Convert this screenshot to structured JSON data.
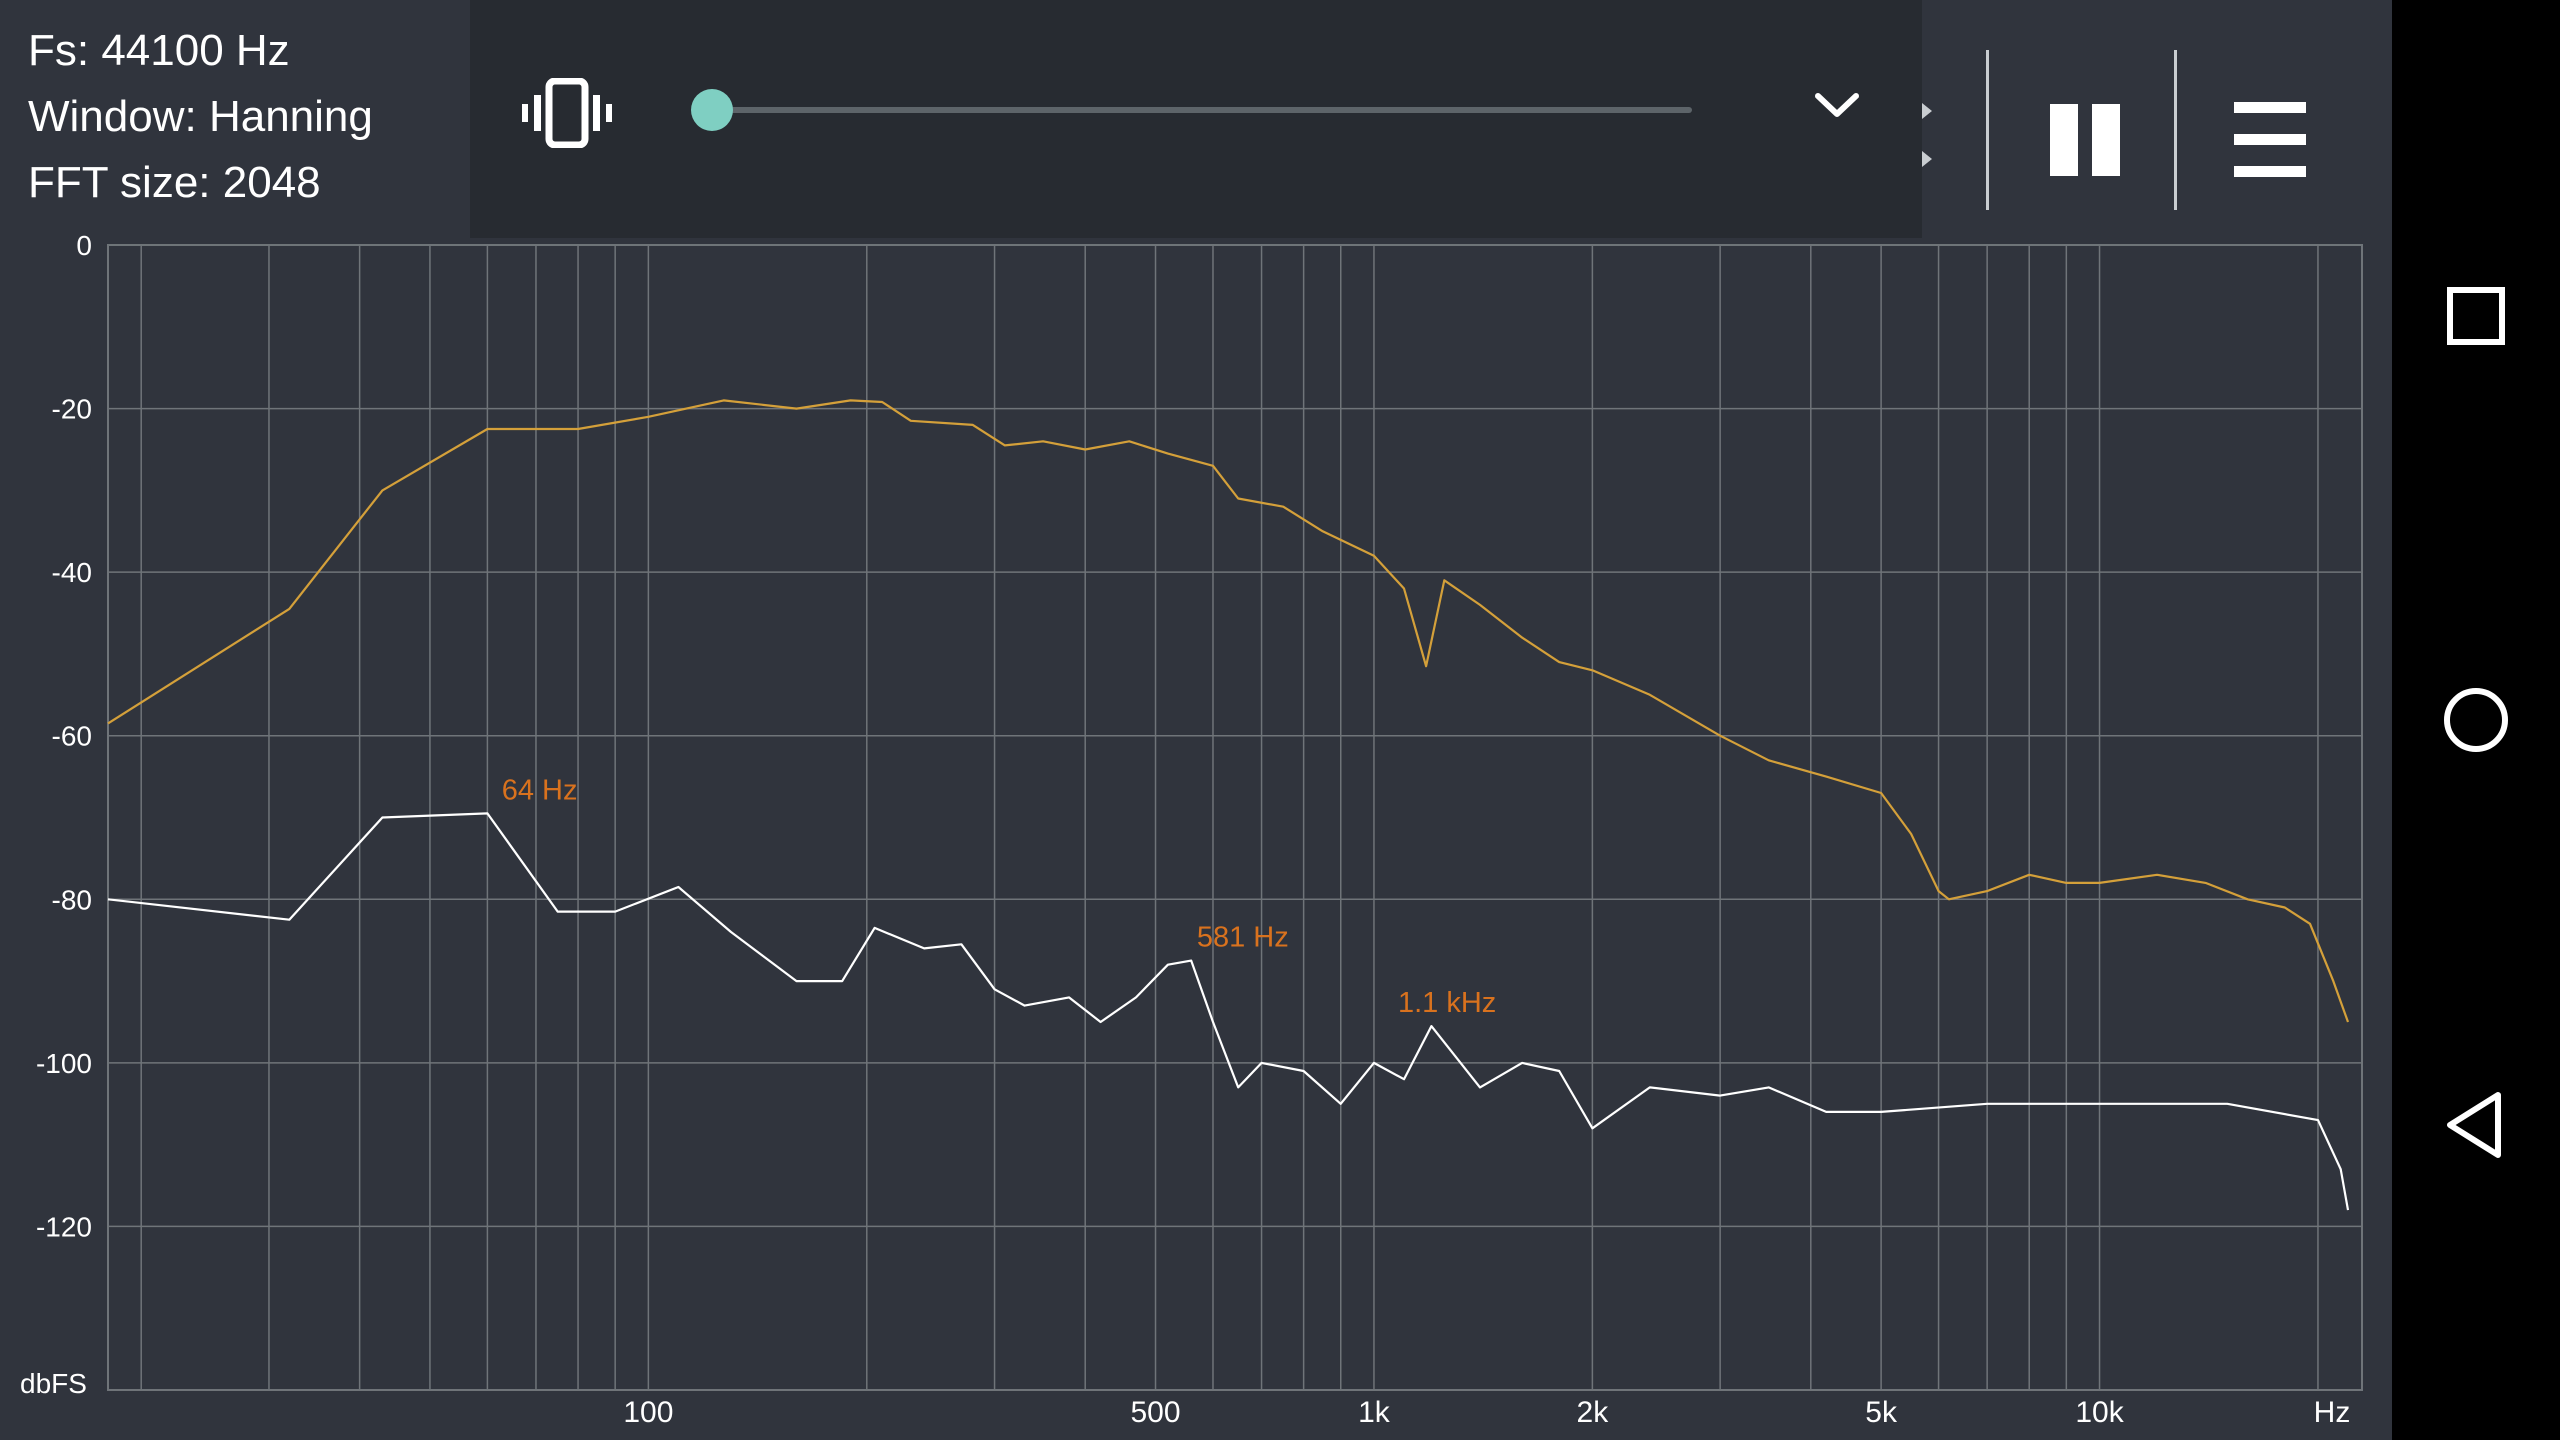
{
  "info": {
    "fs": "Fs: 44100 Hz",
    "window": "Window: Hanning",
    "fft": "FFT size: 2048"
  },
  "volume": {
    "level": 0.02
  },
  "icons": {
    "vibrate": "vibrate-icon",
    "expand": "chevron-down-icon",
    "pause": "pause-icon",
    "menu": "menu-icon",
    "recents": "square-icon",
    "home": "circle-icon",
    "back": "triangle-back-icon"
  },
  "colors": {
    "background": "#30343d",
    "grid": "#6f7479",
    "spectrum_peak": "#d4a03a",
    "spectrum_live": "#ffffff",
    "peak_label": "#d9721e",
    "slider": "#7fcfc2"
  },
  "chart_data": {
    "type": "line",
    "x_scale": "log",
    "xlim": [
      18,
      23000
    ],
    "ylim": [
      -140,
      0
    ],
    "y_unit_label": "dbFS",
    "x_unit_label": "Hz",
    "y_ticks": [
      0,
      -20,
      -40,
      -60,
      -80,
      -100,
      -120
    ],
    "y_tick_labels": [
      "0",
      "-20",
      "-40",
      "-60",
      "-80",
      "-100",
      "-120"
    ],
    "x_ticks": [
      100,
      500,
      1000,
      2000,
      5000,
      10000
    ],
    "x_tick_labels": [
      "100",
      "500",
      "1k",
      "2k",
      "5k",
      "10k"
    ],
    "x_grid": [
      20,
      30,
      40,
      50,
      60,
      70,
      80,
      90,
      100,
      200,
      300,
      400,
      500,
      600,
      700,
      800,
      900,
      1000,
      2000,
      3000,
      4000,
      5000,
      6000,
      7000,
      8000,
      9000,
      10000,
      20000
    ],
    "grid": true,
    "series": [
      {
        "role": "peak-hold",
        "color": "#d4a03a",
        "points": [
          [
            18,
            -58.5
          ],
          [
            32,
            -44.5
          ],
          [
            43,
            -30
          ],
          [
            60,
            -22.5
          ],
          [
            80,
            -22.5
          ],
          [
            100,
            -21
          ],
          [
            127,
            -19
          ],
          [
            160,
            -20
          ],
          [
            190,
            -19
          ],
          [
            210,
            -19.2
          ],
          [
            230,
            -21.5
          ],
          [
            280,
            -22
          ],
          [
            310,
            -24.5
          ],
          [
            350,
            -24
          ],
          [
            400,
            -25
          ],
          [
            460,
            -24
          ],
          [
            520,
            -25.5
          ],
          [
            600,
            -27
          ],
          [
            650,
            -31
          ],
          [
            750,
            -32
          ],
          [
            850,
            -35
          ],
          [
            1000,
            -38
          ],
          [
            1100,
            -42
          ],
          [
            1180,
            -51.5
          ],
          [
            1250,
            -41
          ],
          [
            1400,
            -44
          ],
          [
            1600,
            -48
          ],
          [
            1800,
            -51
          ],
          [
            2000,
            -52
          ],
          [
            2400,
            -55
          ],
          [
            3000,
            -60
          ],
          [
            3500,
            -63
          ],
          [
            4200,
            -65
          ],
          [
            5000,
            -67
          ],
          [
            5500,
            -72
          ],
          [
            6000,
            -79
          ],
          [
            6200,
            -80
          ],
          [
            7000,
            -79
          ],
          [
            8000,
            -77
          ],
          [
            9000,
            -78
          ],
          [
            10000,
            -78
          ],
          [
            12000,
            -77
          ],
          [
            14000,
            -78
          ],
          [
            16000,
            -80
          ],
          [
            18000,
            -81
          ],
          [
            19500,
            -83
          ],
          [
            21000,
            -90
          ],
          [
            22000,
            -95
          ]
        ]
      },
      {
        "role": "live",
        "color": "#ffffff",
        "points": [
          [
            18,
            -80
          ],
          [
            32,
            -82.5
          ],
          [
            43,
            -70
          ],
          [
            60,
            -69.5
          ],
          [
            75,
            -81.5
          ],
          [
            90,
            -81.5
          ],
          [
            110,
            -78.5
          ],
          [
            130,
            -84
          ],
          [
            160,
            -90
          ],
          [
            185,
            -90
          ],
          [
            205,
            -83.5
          ],
          [
            240,
            -86
          ],
          [
            270,
            -85.5
          ],
          [
            300,
            -91
          ],
          [
            330,
            -93
          ],
          [
            380,
            -92
          ],
          [
            420,
            -95
          ],
          [
            470,
            -92
          ],
          [
            520,
            -88
          ],
          [
            560,
            -87.5
          ],
          [
            600,
            -95
          ],
          [
            650,
            -103
          ],
          [
            700,
            -100
          ],
          [
            800,
            -101
          ],
          [
            900,
            -105
          ],
          [
            1000,
            -100
          ],
          [
            1100,
            -102
          ],
          [
            1200,
            -95.5
          ],
          [
            1400,
            -103
          ],
          [
            1600,
            -100
          ],
          [
            1800,
            -101
          ],
          [
            2000,
            -108
          ],
          [
            2400,
            -103
          ],
          [
            3000,
            -104
          ],
          [
            3500,
            -103
          ],
          [
            4200,
            -106
          ],
          [
            5000,
            -106
          ],
          [
            7000,
            -105
          ],
          [
            10000,
            -105
          ],
          [
            15000,
            -105
          ],
          [
            20000,
            -107
          ],
          [
            21500,
            -113
          ],
          [
            22000,
            -118
          ]
        ]
      }
    ],
    "annotations": [
      {
        "text": "64 Hz",
        "x": 64,
        "y": -69.5
      },
      {
        "text": "581 Hz",
        "x": 581,
        "y": -87.5
      },
      {
        "text": "1.1  kHz",
        "x": 1100,
        "y": -95.5
      }
    ]
  }
}
